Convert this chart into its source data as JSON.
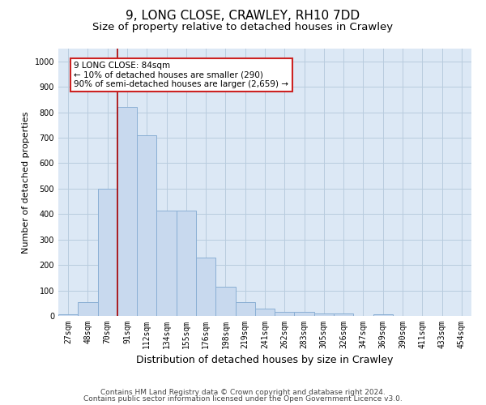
{
  "title": "9, LONG CLOSE, CRAWLEY, RH10 7DD",
  "subtitle": "Size of property relative to detached houses in Crawley",
  "xlabel": "Distribution of detached houses by size in Crawley",
  "ylabel": "Number of detached properties",
  "categories": [
    "27sqm",
    "48sqm",
    "70sqm",
    "91sqm",
    "112sqm",
    "134sqm",
    "155sqm",
    "176sqm",
    "198sqm",
    "219sqm",
    "241sqm",
    "262sqm",
    "283sqm",
    "305sqm",
    "326sqm",
    "347sqm",
    "369sqm",
    "390sqm",
    "411sqm",
    "433sqm",
    "454sqm"
  ],
  "bar_heights": [
    5,
    55,
    500,
    820,
    710,
    415,
    415,
    230,
    115,
    55,
    30,
    15,
    15,
    10,
    10,
    0,
    5,
    0,
    0,
    0,
    0
  ],
  "bar_color": "#c8d9ee",
  "bar_edge_color": "#8aafd4",
  "vline_color": "#aa0000",
  "vline_x_idx": 3.0,
  "annotation_text": "9 LONG CLOSE: 84sqm\n← 10% of detached houses are smaller (290)\n90% of semi-detached houses are larger (2,659) →",
  "annotation_box_color": "#ffffff",
  "annotation_box_edge": "#cc2222",
  "ylim": [
    0,
    1050
  ],
  "yticks": [
    0,
    100,
    200,
    300,
    400,
    500,
    600,
    700,
    800,
    900,
    1000
  ],
  "grid_color": "#b8ccde",
  "background_color": "#dce8f5",
  "footer_line1": "Contains HM Land Registry data © Crown copyright and database right 2024.",
  "footer_line2": "Contains public sector information licensed under the Open Government Licence v3.0.",
  "title_fontsize": 11,
  "subtitle_fontsize": 9.5,
  "xlabel_fontsize": 9,
  "ylabel_fontsize": 8,
  "tick_fontsize": 7,
  "footer_fontsize": 6.5,
  "annot_fontsize": 7.5
}
